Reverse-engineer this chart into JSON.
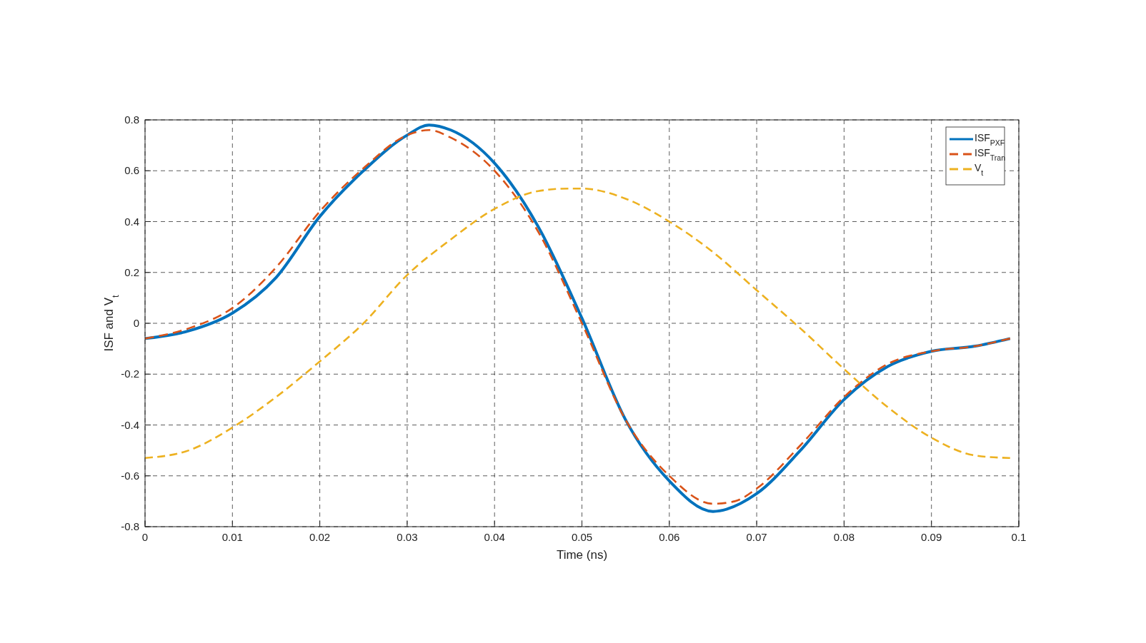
{
  "chart_data": {
    "type": "line",
    "xlabel": "Time (ns)",
    "ylabel": "ISF and V$_{t}$",
    "xlim": [
      0,
      0.1
    ],
    "ylim": [
      -0.8,
      0.8
    ],
    "xticks": [
      0,
      0.01,
      0.02,
      0.03,
      0.04,
      0.05,
      0.06,
      0.07,
      0.08,
      0.09,
      0.1
    ],
    "yticks": [
      -0.8,
      -0.6,
      -0.4,
      -0.2,
      0,
      0.2,
      0.4,
      0.6,
      0.8
    ],
    "grid": true,
    "legend": "top right",
    "series": [
      {
        "name": "ISF$_{PXF}$",
        "color": "#0072bd",
        "line_style": "solid",
        "x": [
          0,
          0.005,
          0.01,
          0.015,
          0.02,
          0.025,
          0.03,
          0.0325,
          0.035,
          0.04,
          0.045,
          0.05,
          0.055,
          0.06,
          0.065,
          0.07,
          0.075,
          0.08,
          0.085,
          0.09,
          0.095,
          0.099
        ],
        "values": [
          -0.06,
          -0.03,
          0.04,
          0.18,
          0.42,
          0.6,
          0.74,
          0.78,
          0.76,
          0.63,
          0.38,
          0.02,
          -0.38,
          -0.62,
          -0.74,
          -0.67,
          -0.5,
          -0.3,
          -0.17,
          -0.11,
          -0.09,
          -0.06
        ]
      },
      {
        "name": "ISF$_{Tran}$",
        "color": "#d95319",
        "line_style": "dashed",
        "x": [
          0,
          0.005,
          0.01,
          0.015,
          0.02,
          0.025,
          0.03,
          0.0325,
          0.035,
          0.04,
          0.045,
          0.05,
          0.055,
          0.06,
          0.065,
          0.0675,
          0.07,
          0.075,
          0.08,
          0.085,
          0.09,
          0.095,
          0.099
        ],
        "values": [
          -0.06,
          -0.02,
          0.06,
          0.22,
          0.44,
          0.61,
          0.74,
          0.76,
          0.73,
          0.6,
          0.36,
          0.0,
          -0.38,
          -0.6,
          -0.71,
          -0.7,
          -0.65,
          -0.48,
          -0.29,
          -0.16,
          -0.11,
          -0.09,
          -0.06
        ]
      },
      {
        "name": "V$_{t}$",
        "color": "#edb120",
        "line_style": "dashed",
        "x": [
          0,
          0.005,
          0.01,
          0.015,
          0.02,
          0.025,
          0.03,
          0.035,
          0.04,
          0.045,
          0.0485,
          0.05,
          0.055,
          0.06,
          0.065,
          0.07,
          0.075,
          0.08,
          0.085,
          0.09,
          0.095,
          0.099
        ],
        "values": [
          -0.53,
          -0.5,
          -0.41,
          -0.29,
          -0.15,
          0.0,
          0.19,
          0.33,
          0.45,
          0.52,
          0.53,
          0.53,
          0.49,
          0.4,
          0.28,
          0.13,
          -0.02,
          -0.18,
          -0.33,
          -0.45,
          -0.52,
          -0.53
        ]
      }
    ]
  }
}
